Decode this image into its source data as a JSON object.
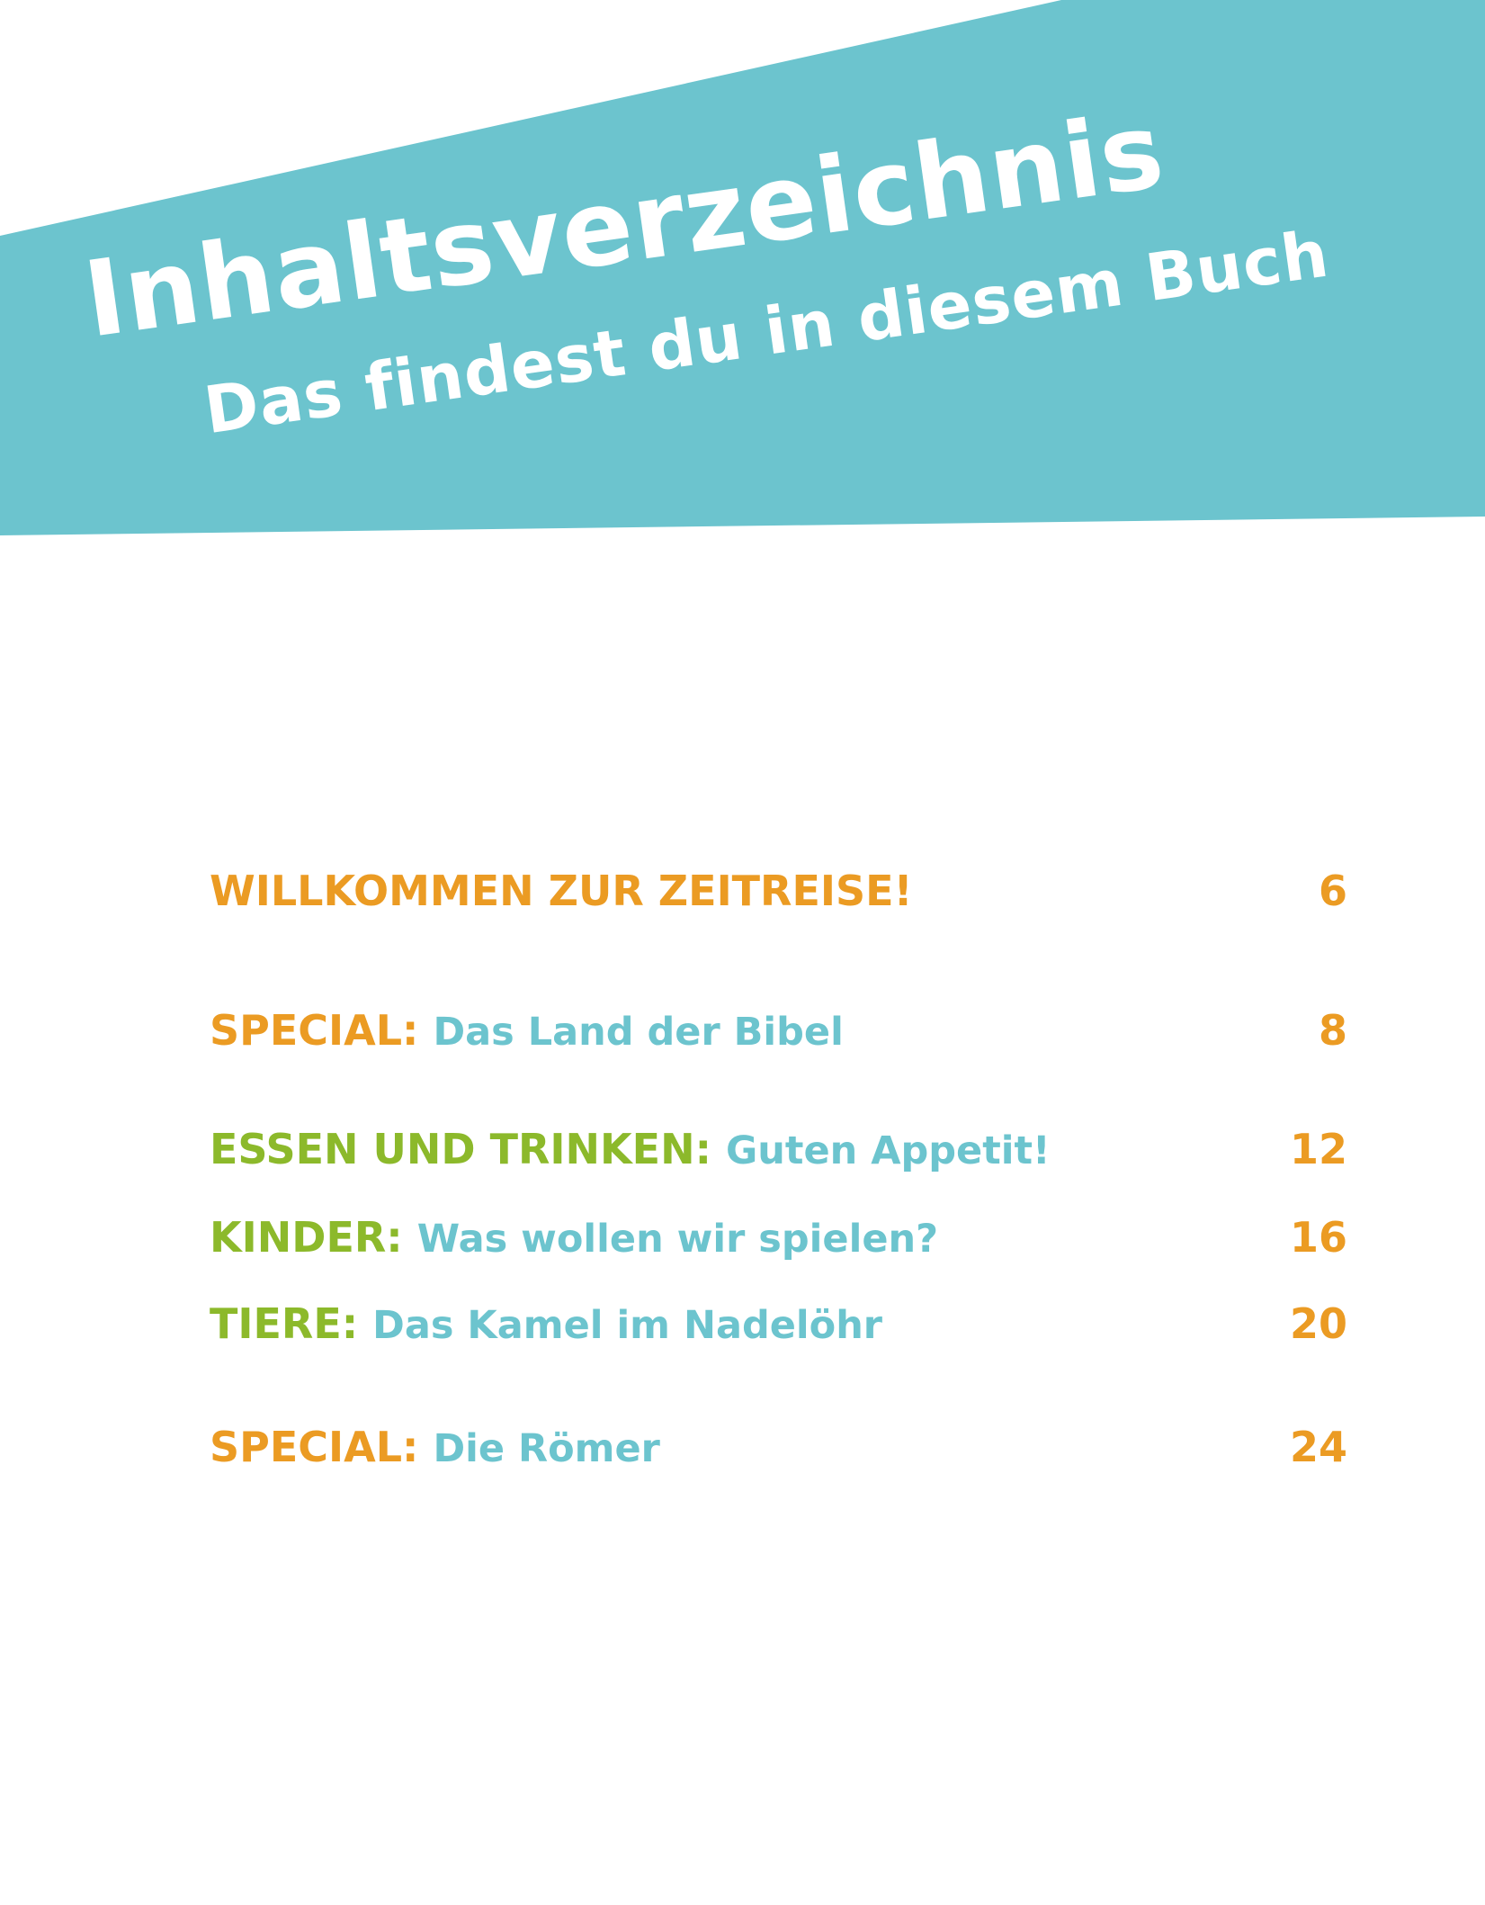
{
  "header": {
    "title": "Inhaltsverzeichnis",
    "subtitle": "Das findest du in diesem Buch",
    "banner_color": "#6cc4ce",
    "text_color": "#ffffff"
  },
  "colors": {
    "orange": "#eb9b23",
    "green": "#8cb92b",
    "teal": "#6cc4ce"
  },
  "toc": {
    "entries": [
      {
        "category": "WILLKOMMEN ZUR ZEITREISE!",
        "description": "",
        "page": "6",
        "category_color": "orange"
      },
      {
        "category": "SPECIAL:",
        "description": "Das Land der Bibel",
        "page": "8",
        "category_color": "orange"
      },
      {
        "category": "ESSEN UND TRINKEN:",
        "description": "Guten Appetit!",
        "page": "12",
        "category_color": "green"
      },
      {
        "category": "KINDER:",
        "description": "Was wollen wir spielen?",
        "page": "16",
        "category_color": "green"
      },
      {
        "category": "TIERE:",
        "description": "Das Kamel im Nadelöhr",
        "page": "20",
        "category_color": "green"
      },
      {
        "category": "SPECIAL:",
        "description": "Die Römer",
        "page": "24",
        "category_color": "orange"
      }
    ]
  }
}
